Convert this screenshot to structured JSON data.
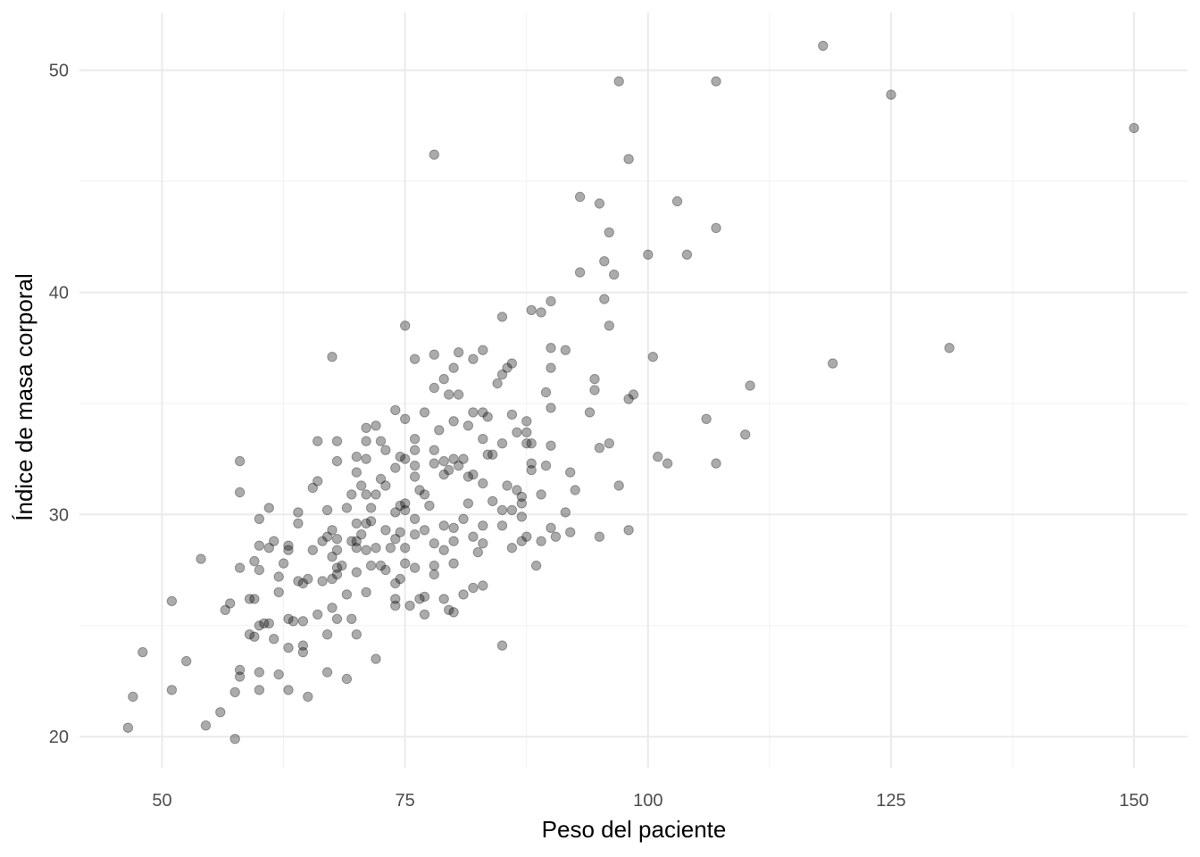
{
  "chart_data": {
    "type": "scatter",
    "xlabel": "Peso del paciente",
    "ylabel": "Índice de masa corporal",
    "xlim": [
      41.5,
      155.5
    ],
    "ylim": [
      18.6,
      52.6
    ],
    "xticks": [
      50,
      75,
      100,
      125,
      150
    ],
    "yticks": [
      20,
      30,
      40,
      50
    ],
    "point_color": "#000000",
    "point_opacity": 0.33,
    "grid": true,
    "points": [
      [
        46.5,
        20.4
      ],
      [
        47,
        21.8
      ],
      [
        48,
        23.8
      ],
      [
        51,
        26.1
      ],
      [
        51,
        22.1
      ],
      [
        52.5,
        23.4
      ],
      [
        54,
        28
      ],
      [
        54.5,
        20.5
      ],
      [
        56,
        21.1
      ],
      [
        56.5,
        25.7
      ],
      [
        57,
        26
      ],
      [
        57.5,
        22
      ],
      [
        57.5,
        19.9
      ],
      [
        58,
        32.4
      ],
      [
        58,
        31
      ],
      [
        58,
        27.6
      ],
      [
        58,
        23
      ],
      [
        58,
        22.7
      ],
      [
        59,
        26.2
      ],
      [
        59,
        24.6
      ],
      [
        59.5,
        24.5
      ],
      [
        59.5,
        27.9
      ],
      [
        59.5,
        26.2
      ],
      [
        60,
        29.8
      ],
      [
        60,
        28.6
      ],
      [
        60,
        27.5
      ],
      [
        60,
        25
      ],
      [
        60,
        22.9
      ],
      [
        60,
        22.1
      ],
      [
        60.5,
        25.1
      ],
      [
        61,
        30.3
      ],
      [
        61,
        28.5
      ],
      [
        61,
        25.1
      ],
      [
        61.5,
        28.8
      ],
      [
        61.5,
        24.4
      ],
      [
        62,
        27.2
      ],
      [
        62,
        26.5
      ],
      [
        62,
        22.8
      ],
      [
        62.5,
        27.8
      ],
      [
        63,
        28.6
      ],
      [
        63,
        28.4
      ],
      [
        63,
        25.3
      ],
      [
        63,
        24
      ],
      [
        63,
        22.1
      ],
      [
        63.5,
        25.2
      ],
      [
        64,
        30.1
      ],
      [
        64,
        29.6
      ],
      [
        64,
        27
      ],
      [
        64.5,
        26.9
      ],
      [
        64.5,
        24.1
      ],
      [
        64.5,
        23.8
      ],
      [
        64.5,
        25.2
      ],
      [
        65,
        27.1
      ],
      [
        65,
        21.8
      ],
      [
        65.5,
        31.2
      ],
      [
        65.5,
        28.4
      ],
      [
        66,
        33.3
      ],
      [
        66,
        31.5
      ],
      [
        66,
        25.5
      ],
      [
        66.5,
        27
      ],
      [
        66.5,
        28.8
      ],
      [
        67,
        30.2
      ],
      [
        67,
        29
      ],
      [
        67,
        24.6
      ],
      [
        67,
        22.9
      ],
      [
        67.5,
        37.1
      ],
      [
        67.5,
        29.3
      ],
      [
        67.5,
        27.1
      ],
      [
        67.5,
        25.8
      ],
      [
        67.5,
        28.1
      ],
      [
        68,
        33.3
      ],
      [
        68,
        32.4
      ],
      [
        68,
        28.9
      ],
      [
        68,
        28.4
      ],
      [
        68,
        27.6
      ],
      [
        68,
        27.3
      ],
      [
        68,
        25.3
      ],
      [
        68.5,
        27.7
      ],
      [
        69,
        30.3
      ],
      [
        69,
        26.4
      ],
      [
        69,
        22.6
      ],
      [
        69.5,
        30.9
      ],
      [
        69.5,
        28.8
      ],
      [
        69.5,
        25.3
      ],
      [
        70,
        32.6
      ],
      [
        70,
        31.9
      ],
      [
        70,
        29.6
      ],
      [
        70,
        28.8
      ],
      [
        70,
        28.5
      ],
      [
        70,
        27.4
      ],
      [
        70,
        24.6
      ],
      [
        70.5,
        31.3
      ],
      [
        70.5,
        29.1
      ],
      [
        71,
        33.9
      ],
      [
        71,
        33.3
      ],
      [
        71,
        32.5
      ],
      [
        71,
        30.9
      ],
      [
        71,
        29.6
      ],
      [
        71,
        28.4
      ],
      [
        71,
        26.5
      ],
      [
        71.5,
        30.3
      ],
      [
        71.5,
        29.7
      ],
      [
        71.5,
        27.7
      ],
      [
        72,
        34
      ],
      [
        72,
        30.9
      ],
      [
        72,
        28.5
      ],
      [
        72,
        23.5
      ],
      [
        72.5,
        33.3
      ],
      [
        72.5,
        31.6
      ],
      [
        72.5,
        27.7
      ],
      [
        73,
        32.9
      ],
      [
        73,
        31.3
      ],
      [
        73,
        29.3
      ],
      [
        73,
        27.5
      ],
      [
        73.5,
        28.5
      ],
      [
        74,
        34.7
      ],
      [
        74,
        32.1
      ],
      [
        74,
        30.1
      ],
      [
        74,
        28.9
      ],
      [
        74,
        26.9
      ],
      [
        74,
        26.2
      ],
      [
        74,
        25.9
      ],
      [
        74.5,
        32.6
      ],
      [
        74.5,
        30.4
      ],
      [
        74.5,
        29.2
      ],
      [
        74.5,
        27.1
      ],
      [
        75,
        38.5
      ],
      [
        75,
        34.3
      ],
      [
        75,
        32.5
      ],
      [
        75,
        30.5
      ],
      [
        75,
        30.2
      ],
      [
        75,
        28.5
      ],
      [
        75,
        27.8
      ],
      [
        75.5,
        25.9
      ],
      [
        76,
        37
      ],
      [
        76,
        33.4
      ],
      [
        76,
        32.9
      ],
      [
        76,
        32.2
      ],
      [
        76,
        31.7
      ],
      [
        76,
        29.8
      ],
      [
        76,
        29.1
      ],
      [
        76,
        27.6
      ],
      [
        76.5,
        31.1
      ],
      [
        76.5,
        26.2
      ],
      [
        77,
        34.6
      ],
      [
        77,
        30.9
      ],
      [
        77,
        29.3
      ],
      [
        77,
        26.3
      ],
      [
        77,
        25.5
      ],
      [
        77.5,
        30.4
      ],
      [
        78,
        46.2
      ],
      [
        78,
        37.2
      ],
      [
        78,
        35.7
      ],
      [
        78,
        32.9
      ],
      [
        78,
        32.3
      ],
      [
        78,
        28.7
      ],
      [
        78,
        27.7
      ],
      [
        78,
        27.3
      ],
      [
        78.5,
        33.8
      ],
      [
        79,
        36.1
      ],
      [
        79,
        32.4
      ],
      [
        79,
        31.8
      ],
      [
        79,
        29.5
      ],
      [
        79,
        28.4
      ],
      [
        79,
        26.2
      ],
      [
        79.5,
        35.4
      ],
      [
        79.5,
        32
      ],
      [
        79.5,
        25.7
      ],
      [
        80,
        36.6
      ],
      [
        80,
        34.2
      ],
      [
        80,
        32.5
      ],
      [
        80,
        29.4
      ],
      [
        80,
        28.8
      ],
      [
        80,
        27.8
      ],
      [
        80,
        25.6
      ],
      [
        80.5,
        37.3
      ],
      [
        80.5,
        35.4
      ],
      [
        80.5,
        32.2
      ],
      [
        81,
        32.5
      ],
      [
        81,
        29.8
      ],
      [
        81,
        26.4
      ],
      [
        81.5,
        34
      ],
      [
        81.5,
        31.7
      ],
      [
        81.5,
        30.5
      ],
      [
        82,
        37
      ],
      [
        82,
        34.6
      ],
      [
        82,
        31.8
      ],
      [
        82,
        29
      ],
      [
        82,
        26.7
      ],
      [
        82.5,
        28.3
      ],
      [
        83,
        37.4
      ],
      [
        83,
        34.6
      ],
      [
        83,
        33.4
      ],
      [
        83,
        31.4
      ],
      [
        83,
        29.5
      ],
      [
        83,
        28.7
      ],
      [
        83,
        26.8
      ],
      [
        83.5,
        34.4
      ],
      [
        83.5,
        32.7
      ],
      [
        84,
        32.7
      ],
      [
        84,
        30.6
      ],
      [
        84.5,
        35.9
      ],
      [
        85,
        38.9
      ],
      [
        85,
        36.3
      ],
      [
        85,
        33.2
      ],
      [
        85,
        30.2
      ],
      [
        85,
        29.5
      ],
      [
        85,
        24.1
      ],
      [
        85.5,
        36.6
      ],
      [
        85.5,
        31.3
      ],
      [
        86,
        36.8
      ],
      [
        86,
        34.5
      ],
      [
        86,
        30.2
      ],
      [
        86,
        28.5
      ],
      [
        86.5,
        33.7
      ],
      [
        86.5,
        31.1
      ],
      [
        87,
        30.8
      ],
      [
        87,
        30.5
      ],
      [
        87,
        29.9
      ],
      [
        87,
        28.8
      ],
      [
        87.5,
        34.2
      ],
      [
        87.5,
        33.7
      ],
      [
        87.5,
        33.2
      ],
      [
        87.5,
        29
      ],
      [
        88,
        39.2
      ],
      [
        88,
        33.2
      ],
      [
        88,
        32
      ],
      [
        88,
        32.3
      ],
      [
        88.5,
        27.7
      ],
      [
        89,
        39.1
      ],
      [
        89,
        30.9
      ],
      [
        89,
        28.8
      ],
      [
        89.5,
        35.5
      ],
      [
        89.5,
        32.2
      ],
      [
        90,
        39.6
      ],
      [
        90,
        37.5
      ],
      [
        90,
        36.6
      ],
      [
        90,
        34.8
      ],
      [
        90,
        33.1
      ],
      [
        90,
        29.4
      ],
      [
        90.5,
        29
      ],
      [
        91.5,
        37.4
      ],
      [
        91.5,
        30.1
      ],
      [
        92,
        31.9
      ],
      [
        92,
        29.2
      ],
      [
        92.5,
        31.1
      ],
      [
        93,
        44.3
      ],
      [
        93,
        40.9
      ],
      [
        94,
        34.6
      ],
      [
        94.5,
        35.6
      ],
      [
        94.5,
        36.1
      ],
      [
        95,
        44
      ],
      [
        95,
        29
      ],
      [
        95,
        33
      ],
      [
        95.5,
        41.4
      ],
      [
        95.5,
        39.7
      ],
      [
        96,
        42.7
      ],
      [
        96,
        38.5
      ],
      [
        96,
        33.2
      ],
      [
        96.5,
        40.8
      ],
      [
        97,
        31.3
      ],
      [
        97,
        49.5
      ],
      [
        98,
        46
      ],
      [
        98,
        35.2
      ],
      [
        98,
        29.3
      ],
      [
        98.5,
        35.4
      ],
      [
        100,
        41.7
      ],
      [
        100.5,
        37.1
      ],
      [
        101,
        32.6
      ],
      [
        102,
        32.3
      ],
      [
        103,
        44.1
      ],
      [
        104,
        41.7
      ],
      [
        106,
        34.3
      ],
      [
        107,
        49.5
      ],
      [
        107,
        42.9
      ],
      [
        107,
        32.3
      ],
      [
        110,
        33.6
      ],
      [
        110.5,
        35.8
      ],
      [
        118,
        51.1
      ],
      [
        119,
        36.8
      ],
      [
        125,
        48.9
      ],
      [
        131,
        37.5
      ],
      [
        150,
        47.4
      ]
    ]
  }
}
